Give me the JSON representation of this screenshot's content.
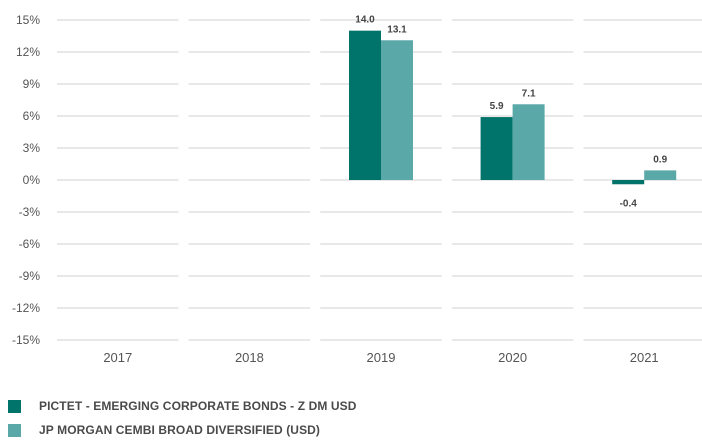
{
  "chart_data": {
    "type": "bar",
    "categories": [
      "2017",
      "2018",
      "2019",
      "2020",
      "2021"
    ],
    "series": [
      {
        "name": "PICTET - EMERGING CORPORATE BONDS - Z DM USD",
        "color": "#00736b",
        "values": [
          null,
          null,
          14.0,
          5.9,
          -0.4
        ],
        "labels": [
          "",
          "",
          "14.0",
          "5.9",
          "-0.4"
        ]
      },
      {
        "name": "JP MORGAN CEMBI BROAD DIVERSIFIED (USD)",
        "color": "#5ba8a8",
        "values": [
          null,
          null,
          13.1,
          7.1,
          0.9
        ],
        "labels": [
          "",
          "",
          "13.1",
          "7.1",
          "0.9"
        ]
      }
    ],
    "yticks": [
      15,
      12,
      9,
      6,
      3,
      0,
      -3,
      -6,
      -9,
      -12,
      -15
    ],
    "ytick_labels": [
      "15%",
      "12%",
      "9%",
      "6%",
      "3%",
      "0%",
      "-3%",
      "-6%",
      "-9%",
      "-12%",
      "-15%"
    ],
    "ylim": [
      -15,
      15
    ],
    "grid": true,
    "legend_position": "bottom-left"
  }
}
